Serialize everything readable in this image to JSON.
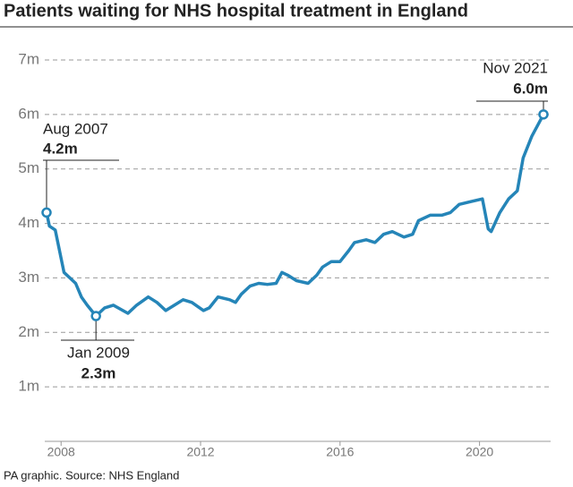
{
  "chart_data": {
    "type": "line",
    "title": "Patients waiting for NHS hospital treatment in England",
    "source": "PA graphic. Source: NHS England",
    "x": [
      "2007-08",
      "2007-09",
      "2007-11",
      "2008-02",
      "2008-06",
      "2008-08",
      "2008-10",
      "2009-01",
      "2009-04",
      "2009-07",
      "2009-12",
      "2010-03",
      "2010-07",
      "2010-10",
      "2011-01",
      "2011-04",
      "2011-07",
      "2011-10",
      "2012-02",
      "2012-04",
      "2012-07",
      "2012-11",
      "2013-01",
      "2013-03",
      "2013-06",
      "2013-09",
      "2013-12",
      "2014-03",
      "2014-05",
      "2014-07",
      "2014-10",
      "2015-02",
      "2015-05",
      "2015-07",
      "2015-10",
      "2016-01",
      "2016-04",
      "2016-06",
      "2016-10",
      "2017-01",
      "2017-04",
      "2017-07",
      "2017-11",
      "2018-02",
      "2018-04",
      "2018-08",
      "2018-12",
      "2019-03",
      "2019-06",
      "2019-10",
      "2020-02",
      "2020-04",
      "2020-05",
      "2020-08",
      "2020-11",
      "2021-02",
      "2021-04",
      "2021-07",
      "2021-11"
    ],
    "series": [
      {
        "name": "Patients waiting",
        "color": "#2585b8",
        "values": [
          4.2,
          3.95,
          3.88,
          3.1,
          2.9,
          2.65,
          2.5,
          2.3,
          2.45,
          2.5,
          2.35,
          2.5,
          2.65,
          2.55,
          2.4,
          2.5,
          2.6,
          2.55,
          2.4,
          2.45,
          2.65,
          2.6,
          2.55,
          2.7,
          2.85,
          2.9,
          2.88,
          2.9,
          3.1,
          3.05,
          2.95,
          2.9,
          3.05,
          3.2,
          3.3,
          3.3,
          3.5,
          3.65,
          3.7,
          3.65,
          3.8,
          3.85,
          3.75,
          3.8,
          4.05,
          4.15,
          4.15,
          4.2,
          4.35,
          4.4,
          4.45,
          3.9,
          3.85,
          4.2,
          4.45,
          4.6,
          5.2,
          5.6,
          6.0
        ],
        "value_labels": [
          "4.2m",
          null,
          null,
          null,
          null,
          null,
          null,
          "2.3m",
          null,
          null,
          null,
          null,
          null,
          null,
          null,
          null,
          null,
          null,
          null,
          null,
          null,
          null,
          null,
          null,
          null,
          null,
          null,
          null,
          null,
          null,
          null,
          null,
          null,
          null,
          null,
          null,
          null,
          null,
          null,
          null,
          null,
          null,
          null,
          null,
          null,
          null,
          null,
          null,
          null,
          null,
          null,
          null,
          null,
          null,
          null,
          null,
          null,
          null,
          "6.0m"
        ]
      }
    ],
    "annotations": [
      "Aug 2007",
      "Jan 2009",
      "Nov 2021"
    ],
    "xlim": [
      "2007-08",
      "2021-11"
    ],
    "xticks": [
      {
        "value": "2008-01",
        "label": "2008"
      },
      {
        "value": "2012-01",
        "label": "2012"
      },
      {
        "value": "2016-01",
        "label": "2016"
      },
      {
        "value": "2020-01",
        "label": "2020"
      }
    ],
    "ylim": [
      0,
      7
    ],
    "yticks": [
      {
        "value": 1,
        "label": "1m"
      },
      {
        "value": 2,
        "label": "2m"
      },
      {
        "value": 3,
        "label": "3m"
      },
      {
        "value": 4,
        "label": "4m"
      },
      {
        "value": 5,
        "label": "5m"
      },
      {
        "value": 6,
        "label": "6m"
      },
      {
        "value": 7,
        "label": "7m"
      }
    ],
    "grid": true
  }
}
